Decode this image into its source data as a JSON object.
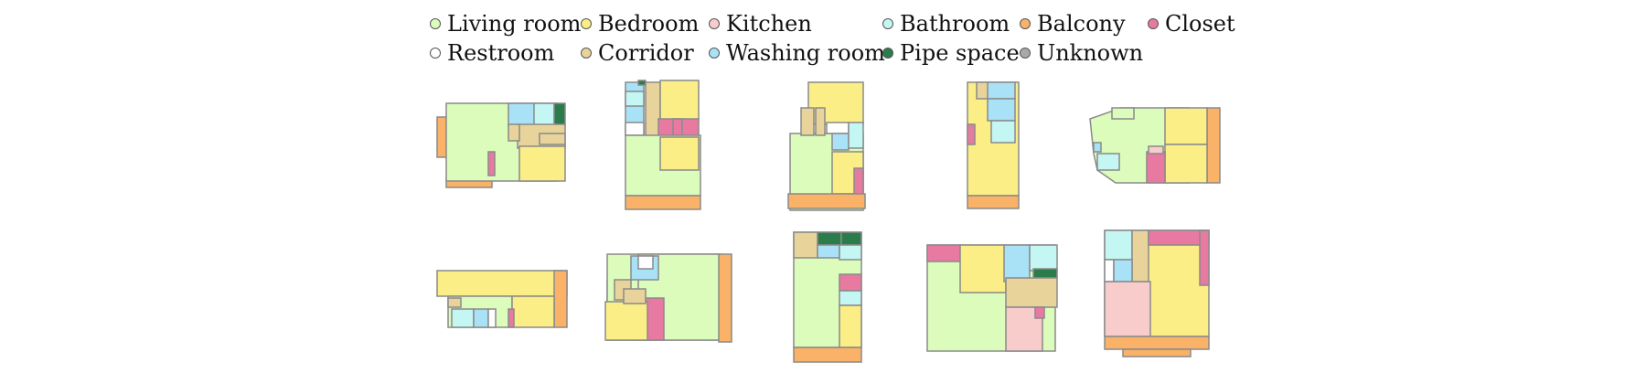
{
  "legend": {
    "items": [
      {
        "key": "living",
        "label": "Living room",
        "color": "#dcfcbc"
      },
      {
        "key": "bedroom",
        "label": "Bedroom",
        "color": "#fcee86"
      },
      {
        "key": "kitchen",
        "label": "Kitchen",
        "color": "#f9cccc"
      },
      {
        "key": "bathroom",
        "label": "Bathroom",
        "color": "#c4f7f4"
      },
      {
        "key": "balcony",
        "label": "Balcony",
        "color": "#f9b267"
      },
      {
        "key": "closet",
        "label": "Closet",
        "color": "#e87aa2"
      },
      {
        "key": "restroom",
        "label": "Restroom",
        "color": "#ffffff"
      },
      {
        "key": "corridor",
        "label": "Corridor",
        "color": "#e8d49a"
      },
      {
        "key": "washing",
        "label": "Washing room",
        "color": "#a9e2f6"
      },
      {
        "key": "pipe",
        "label": "Pipe space",
        "color": "#2a7d4a"
      },
      {
        "key": "unknown",
        "label": "Unknown",
        "color": "#a9a9a9"
      }
    ]
  },
  "floorplans": {
    "icons": [
      "floorplan-1",
      "floorplan-2",
      "floorplan-3",
      "floorplan-4",
      "floorplan-5",
      "floorplan-6",
      "floorplan-7",
      "floorplan-8",
      "floorplan-9",
      "floorplan-10"
    ]
  }
}
